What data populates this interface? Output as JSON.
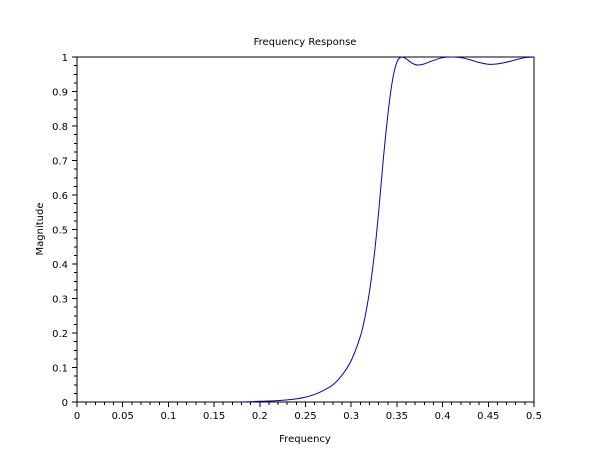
{
  "chart_data": {
    "type": "line",
    "title": "Frequency Response",
    "xlabel": "Frequency",
    "ylabel": "Magnitude",
    "xlim": [
      0,
      0.5
    ],
    "ylim": [
      0,
      1
    ],
    "xticks": [
      "0",
      "0.05",
      "0.1",
      "0.15",
      "0.2",
      "0.25",
      "0.3",
      "0.35",
      "0.4",
      "0.45",
      "0.5"
    ],
    "yticks": [
      "0",
      "0.1",
      "0.2",
      "0.3",
      "0.4",
      "0.5",
      "0.6",
      "0.7",
      "0.8",
      "0.9",
      "1"
    ],
    "grid": false,
    "legend": "none",
    "colors": {
      "line": "#0000cc",
      "axis": "#000000"
    },
    "series": [
      {
        "x": [
          0.18,
          0.2,
          0.22,
          0.24,
          0.25,
          0.26,
          0.27,
          0.28,
          0.29,
          0.3,
          0.31,
          0.315,
          0.32,
          0.325,
          0.33,
          0.335,
          0.34,
          0.345,
          0.35,
          0.355,
          0.36,
          0.365,
          0.37,
          0.375,
          0.38,
          0.39,
          0.4,
          0.41,
          0.42,
          0.43,
          0.44,
          0.45,
          0.46,
          0.47,
          0.48,
          0.49,
          0.5
        ],
        "y": [
          0.0,
          0.002,
          0.004,
          0.009,
          0.014,
          0.022,
          0.034,
          0.05,
          0.078,
          0.12,
          0.19,
          0.245,
          0.32,
          0.42,
          0.55,
          0.7,
          0.83,
          0.93,
          0.985,
          1.0,
          0.995,
          0.985,
          0.978,
          0.977,
          0.98,
          0.99,
          0.998,
          1.0,
          0.998,
          0.992,
          0.984,
          0.979,
          0.98,
          0.985,
          0.992,
          0.998,
          1.0
        ]
      }
    ]
  }
}
